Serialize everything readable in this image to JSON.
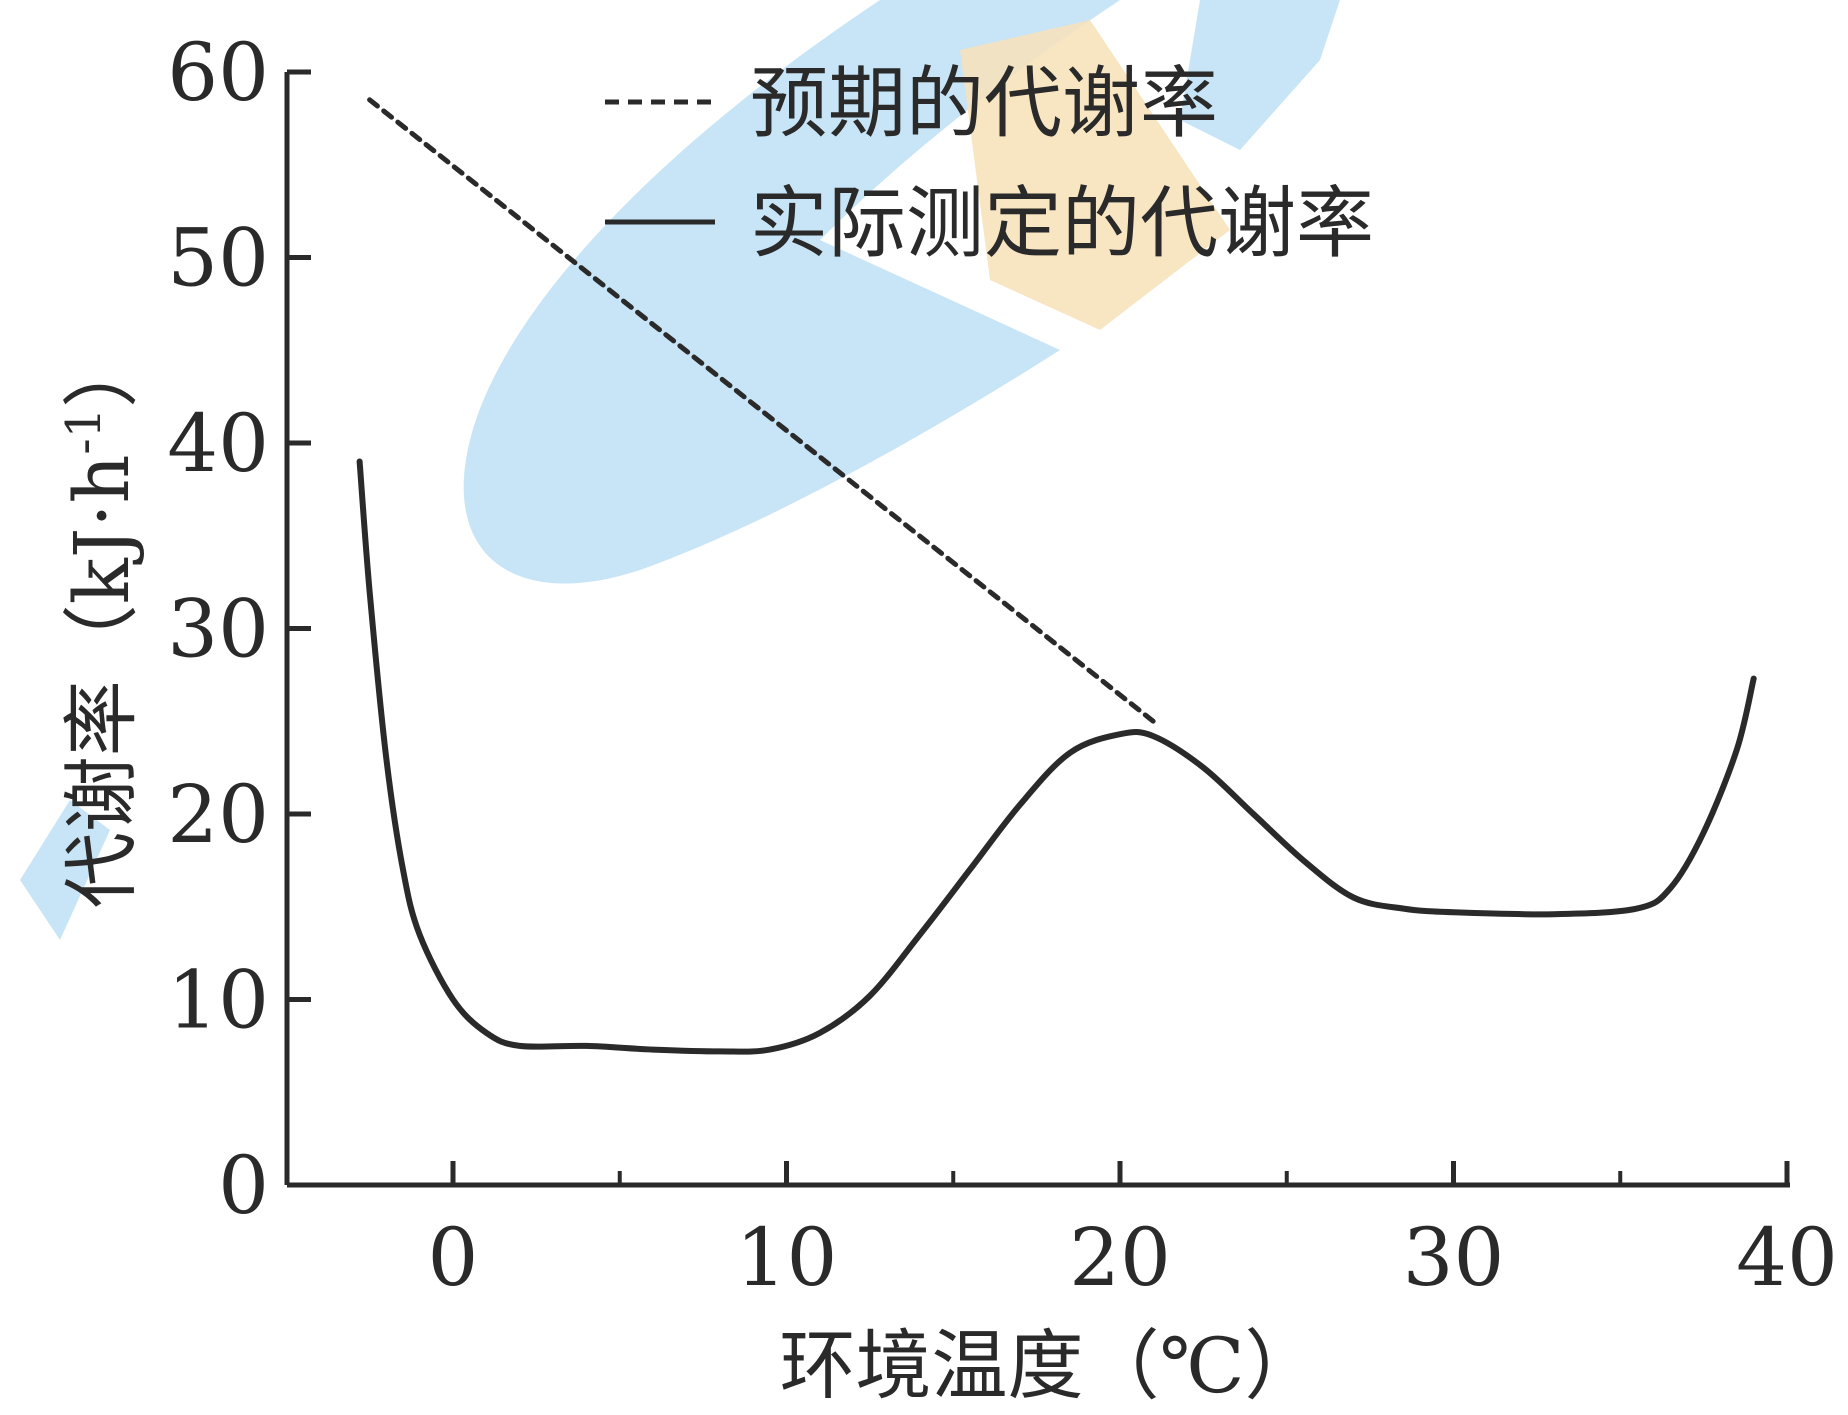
{
  "chart_data": {
    "type": "line",
    "title": "",
    "xlabel": "环境温度（℃）",
    "ylabel": "代谢率（kJ·h",
    "ylabel_superscript": "-1",
    "ylabel_suffix": "）",
    "xlim": [
      -5,
      41
    ],
    "ylim": [
      0,
      60
    ],
    "x_ticks": [
      0,
      10,
      20,
      30,
      40
    ],
    "x_ticks_labels": [
      "0",
      "10",
      "20",
      "30",
      "40"
    ],
    "x_minor_ticks": [
      5,
      15,
      25,
      35
    ],
    "y_ticks": [
      0,
      10,
      20,
      30,
      40,
      50,
      60
    ],
    "y_ticks_labels": [
      "0",
      "10",
      "20",
      "30",
      "40",
      "50",
      "60"
    ],
    "grid": false,
    "legend_position": "top-center",
    "series": [
      {
        "name": "预期的代谢率",
        "style": "dashed",
        "color": "#2a2a2a",
        "points": [
          [
            -2.5,
            58.5
          ],
          [
            21,
            25
          ]
        ]
      },
      {
        "name": "实际测定的代谢率",
        "style": "solid",
        "color": "#2a2a2a",
        "points": [
          [
            -2.8,
            39
          ],
          [
            -2.5,
            32
          ],
          [
            -2,
            23
          ],
          [
            -1.5,
            17
          ],
          [
            -1,
            13.5
          ],
          [
            0,
            10
          ],
          [
            1,
            8.2
          ],
          [
            2,
            7.5
          ],
          [
            4,
            7.5
          ],
          [
            6,
            7.3
          ],
          [
            8,
            7.2
          ],
          [
            9.5,
            7.3
          ],
          [
            11,
            8.2
          ],
          [
            12.5,
            10.2
          ],
          [
            14,
            13.5
          ],
          [
            15.5,
            17
          ],
          [
            17,
            20.5
          ],
          [
            18.5,
            23.3
          ],
          [
            20,
            24.3
          ],
          [
            21,
            24.2
          ],
          [
            22.5,
            22.5
          ],
          [
            24,
            20
          ],
          [
            25.5,
            17.5
          ],
          [
            27,
            15.5
          ],
          [
            28.5,
            14.9
          ],
          [
            30,
            14.7
          ],
          [
            33,
            14.6
          ],
          [
            35.5,
            14.9
          ],
          [
            36.5,
            16
          ],
          [
            37.5,
            19
          ],
          [
            38.5,
            23.5
          ],
          [
            39,
            27.3
          ]
        ]
      }
    ]
  },
  "colors": {
    "axis": "#2a2a2a",
    "watermark_blue": "#bde0f5",
    "watermark_orange": "#f7e2b8"
  }
}
